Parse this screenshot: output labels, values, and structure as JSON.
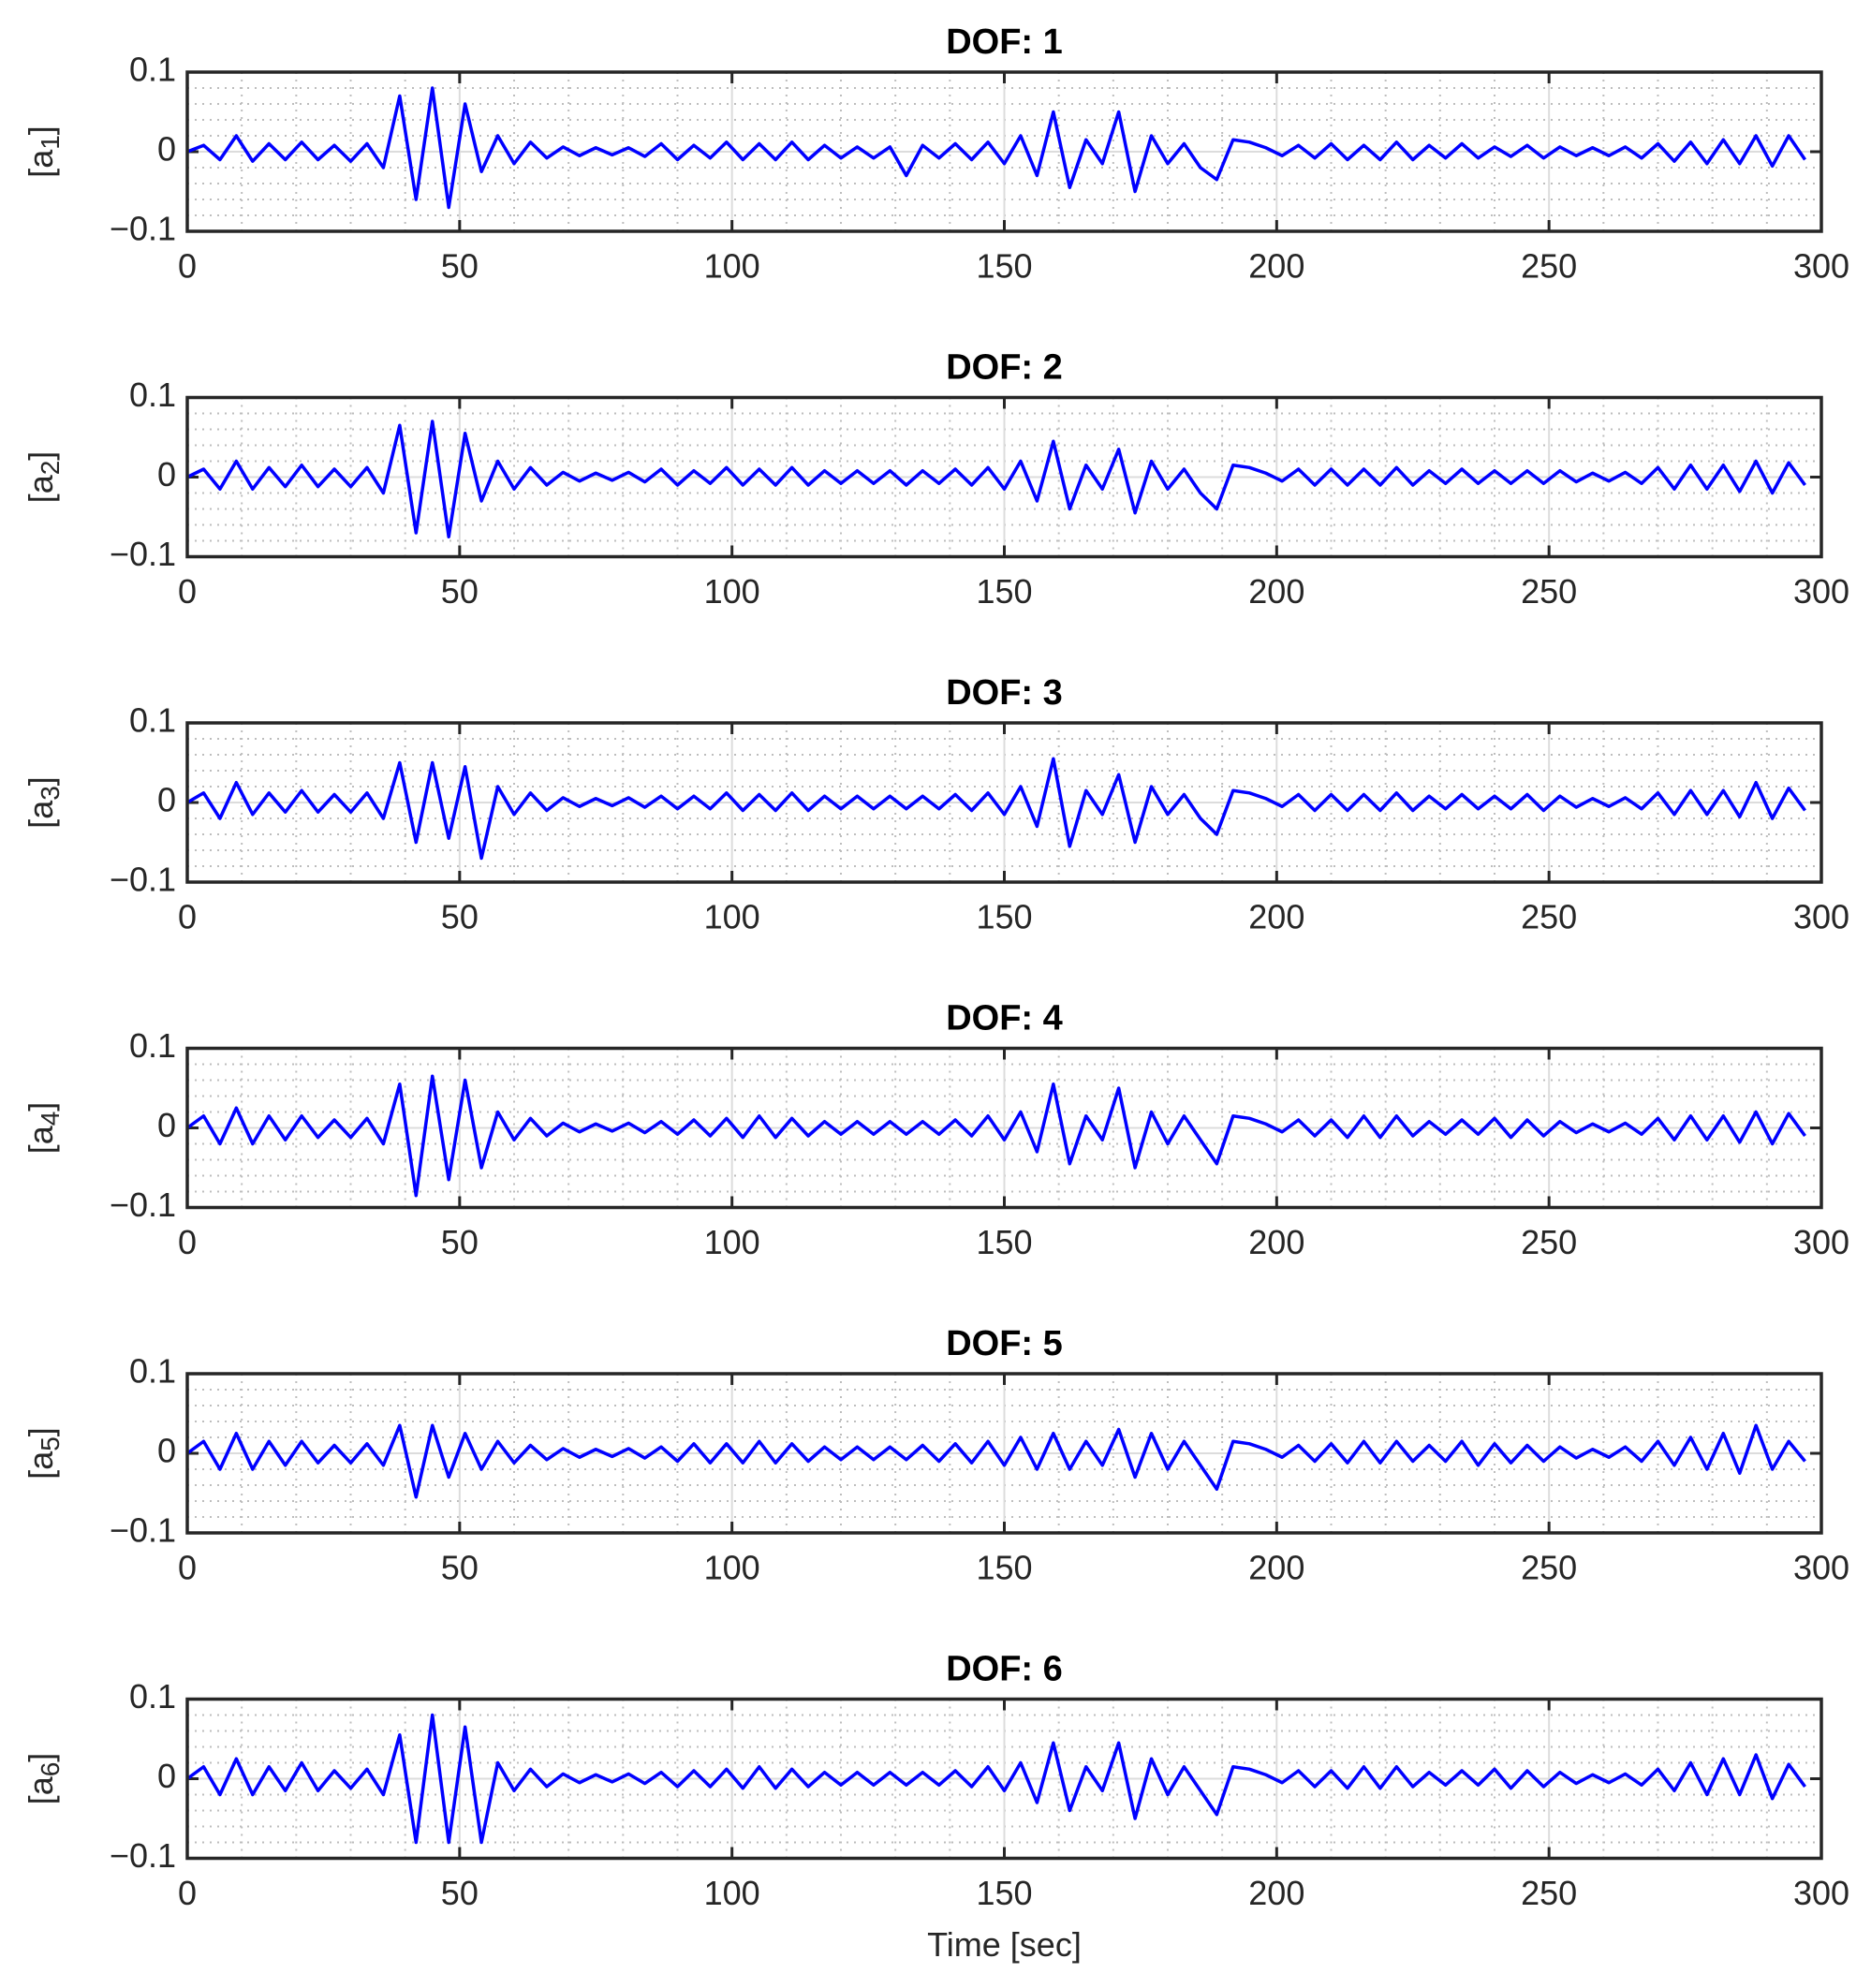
{
  "chart_data": [
    {
      "type": "line",
      "title": "DOF: 1",
      "ylabel": "[a1]",
      "color": "#0000ff",
      "x": [
        0,
        3,
        6,
        9,
        12,
        15,
        18,
        21,
        24,
        27,
        30,
        33,
        36,
        39,
        42,
        45,
        48,
        51,
        54,
        57,
        60,
        63,
        66,
        69,
        72,
        75,
        78,
        81,
        84,
        87,
        90,
        93,
        96,
        99,
        102,
        105,
        108,
        111,
        114,
        117,
        120,
        123,
        126,
        129,
        132,
        135,
        138,
        141,
        144,
        147,
        150,
        153,
        156,
        159,
        162,
        165,
        168,
        171,
        174,
        177,
        180,
        183,
        186,
        189,
        192,
        195,
        198,
        201,
        204,
        207,
        210,
        213,
        216,
        219,
        222,
        225,
        228,
        231,
        234,
        237,
        240,
        243,
        246,
        249,
        252,
        255,
        258,
        261,
        264,
        267,
        270,
        273,
        276,
        279,
        282,
        285,
        288,
        291,
        294,
        297
      ],
      "values": [
        0,
        0.008,
        -0.01,
        0.02,
        -0.012,
        0.01,
        -0.01,
        0.012,
        -0.01,
        0.008,
        -0.012,
        0.01,
        -0.02,
        0.07,
        -0.06,
        0.08,
        -0.07,
        0.06,
        -0.025,
        0.02,
        -0.015,
        0.012,
        -0.008,
        0.006,
        -0.005,
        0.005,
        -0.004,
        0.005,
        -0.006,
        0.01,
        -0.01,
        0.008,
        -0.008,
        0.012,
        -0.01,
        0.01,
        -0.01,
        0.012,
        -0.01,
        0.008,
        -0.008,
        0.006,
        -0.008,
        0.006,
        -0.03,
        0.008,
        -0.008,
        0.01,
        -0.01,
        0.012,
        -0.015,
        0.02,
        -0.03,
        0.05,
        -0.045,
        0.015,
        -0.015,
        0.05,
        -0.05,
        0.02,
        -0.015,
        0.01,
        -0.02,
        -0.035,
        0.015,
        0.012,
        0.005,
        -0.005,
        0.008,
        -0.008,
        0.01,
        -0.01,
        0.008,
        -0.01,
        0.012,
        -0.01,
        0.008,
        -0.008,
        0.01,
        -0.008,
        0.006,
        -0.006,
        0.008,
        -0.008,
        0.006,
        -0.005,
        0.005,
        -0.005,
        0.006,
        -0.008,
        0.01,
        -0.012,
        0.012,
        -0.015,
        0.015,
        -0.015,
        0.02,
        -0.018,
        0.02,
        -0.01
      ],
      "xlim": [
        0,
        300
      ],
      "ylim": [
        -0.1,
        0.1
      ],
      "xticks": [
        0,
        50,
        100,
        150,
        200,
        250,
        300
      ],
      "yticks": [
        {
          "value": -0.1,
          "label": "−0.1"
        },
        0,
        0.1
      ],
      "grid": true,
      "minor_grid": true
    },
    {
      "type": "line",
      "title": "DOF: 2",
      "ylabel": "[a2]",
      "color": "#0000ff",
      "x": [
        0,
        3,
        6,
        9,
        12,
        15,
        18,
        21,
        24,
        27,
        30,
        33,
        36,
        39,
        42,
        45,
        48,
        51,
        54,
        57,
        60,
        63,
        66,
        69,
        72,
        75,
        78,
        81,
        84,
        87,
        90,
        93,
        96,
        99,
        102,
        105,
        108,
        111,
        114,
        117,
        120,
        123,
        126,
        129,
        132,
        135,
        138,
        141,
        144,
        147,
        150,
        153,
        156,
        159,
        162,
        165,
        168,
        171,
        174,
        177,
        180,
        183,
        186,
        189,
        192,
        195,
        198,
        201,
        204,
        207,
        210,
        213,
        216,
        219,
        222,
        225,
        228,
        231,
        234,
        237,
        240,
        243,
        246,
        249,
        252,
        255,
        258,
        261,
        264,
        267,
        270,
        273,
        276,
        279,
        282,
        285,
        288,
        291,
        294,
        297
      ],
      "values": [
        0,
        0.01,
        -0.015,
        0.02,
        -0.015,
        0.012,
        -0.012,
        0.015,
        -0.012,
        0.01,
        -0.012,
        0.012,
        -0.02,
        0.065,
        -0.07,
        0.07,
        -0.075,
        0.055,
        -0.03,
        0.02,
        -0.015,
        0.012,
        -0.01,
        0.006,
        -0.005,
        0.005,
        -0.004,
        0.006,
        -0.006,
        0.01,
        -0.01,
        0.008,
        -0.008,
        0.012,
        -0.01,
        0.01,
        -0.01,
        0.012,
        -0.01,
        0.008,
        -0.008,
        0.008,
        -0.008,
        0.008,
        -0.01,
        0.008,
        -0.008,
        0.01,
        -0.01,
        0.012,
        -0.015,
        0.02,
        -0.03,
        0.045,
        -0.04,
        0.015,
        -0.015,
        0.035,
        -0.045,
        0.02,
        -0.015,
        0.01,
        -0.02,
        -0.04,
        0.015,
        0.012,
        0.005,
        -0.005,
        0.01,
        -0.01,
        0.01,
        -0.01,
        0.01,
        -0.01,
        0.012,
        -0.01,
        0.008,
        -0.008,
        0.01,
        -0.008,
        0.008,
        -0.008,
        0.008,
        -0.008,
        0.008,
        -0.006,
        0.005,
        -0.005,
        0.006,
        -0.008,
        0.012,
        -0.015,
        0.015,
        -0.015,
        0.015,
        -0.018,
        0.02,
        -0.02,
        0.018,
        -0.01
      ],
      "xlim": [
        0,
        300
      ],
      "ylim": [
        -0.1,
        0.1
      ],
      "xticks": [
        0,
        50,
        100,
        150,
        200,
        250,
        300
      ],
      "yticks": [
        {
          "value": -0.1,
          "label": "−0.1"
        },
        0,
        0.1
      ],
      "grid": true,
      "minor_grid": true
    },
    {
      "type": "line",
      "title": "DOF: 3",
      "ylabel": "[a3]",
      "color": "#0000ff",
      "x": [
        0,
        3,
        6,
        9,
        12,
        15,
        18,
        21,
        24,
        27,
        30,
        33,
        36,
        39,
        42,
        45,
        48,
        51,
        54,
        57,
        60,
        63,
        66,
        69,
        72,
        75,
        78,
        81,
        84,
        87,
        90,
        93,
        96,
        99,
        102,
        105,
        108,
        111,
        114,
        117,
        120,
        123,
        126,
        129,
        132,
        135,
        138,
        141,
        144,
        147,
        150,
        153,
        156,
        159,
        162,
        165,
        168,
        171,
        174,
        177,
        180,
        183,
        186,
        189,
        192,
        195,
        198,
        201,
        204,
        207,
        210,
        213,
        216,
        219,
        222,
        225,
        228,
        231,
        234,
        237,
        240,
        243,
        246,
        249,
        252,
        255,
        258,
        261,
        264,
        267,
        270,
        273,
        276,
        279,
        282,
        285,
        288,
        291,
        294,
        297
      ],
      "values": [
        0,
        0.012,
        -0.02,
        0.025,
        -0.015,
        0.012,
        -0.012,
        0.015,
        -0.012,
        0.01,
        -0.012,
        0.012,
        -0.02,
        0.05,
        -0.05,
        0.05,
        -0.045,
        0.045,
        -0.07,
        0.02,
        -0.015,
        0.012,
        -0.01,
        0.006,
        -0.005,
        0.005,
        -0.004,
        0.006,
        -0.006,
        0.008,
        -0.008,
        0.008,
        -0.008,
        0.012,
        -0.01,
        0.01,
        -0.01,
        0.012,
        -0.01,
        0.008,
        -0.008,
        0.008,
        -0.008,
        0.008,
        -0.008,
        0.008,
        -0.008,
        0.01,
        -0.01,
        0.012,
        -0.015,
        0.02,
        -0.03,
        0.055,
        -0.055,
        0.015,
        -0.015,
        0.035,
        -0.05,
        0.02,
        -0.015,
        0.01,
        -0.02,
        -0.04,
        0.015,
        0.012,
        0.005,
        -0.005,
        0.01,
        -0.01,
        0.01,
        -0.01,
        0.01,
        -0.01,
        0.012,
        -0.01,
        0.008,
        -0.008,
        0.01,
        -0.008,
        0.008,
        -0.008,
        0.01,
        -0.01,
        0.008,
        -0.006,
        0.005,
        -0.005,
        0.006,
        -0.008,
        0.012,
        -0.015,
        0.015,
        -0.015,
        0.015,
        -0.018,
        0.025,
        -0.02,
        0.018,
        -0.01
      ],
      "xlim": [
        0,
        300
      ],
      "ylim": [
        -0.1,
        0.1
      ],
      "xticks": [
        0,
        50,
        100,
        150,
        200,
        250,
        300
      ],
      "yticks": [
        {
          "value": -0.1,
          "label": "−0.1"
        },
        0,
        0.1
      ],
      "grid": true,
      "minor_grid": true
    },
    {
      "type": "line",
      "title": "DOF: 4",
      "ylabel": "[a4]",
      "color": "#0000ff",
      "x": [
        0,
        3,
        6,
        9,
        12,
        15,
        18,
        21,
        24,
        27,
        30,
        33,
        36,
        39,
        42,
        45,
        48,
        51,
        54,
        57,
        60,
        63,
        66,
        69,
        72,
        75,
        78,
        81,
        84,
        87,
        90,
        93,
        96,
        99,
        102,
        105,
        108,
        111,
        114,
        117,
        120,
        123,
        126,
        129,
        132,
        135,
        138,
        141,
        144,
        147,
        150,
        153,
        156,
        159,
        162,
        165,
        168,
        171,
        174,
        177,
        180,
        183,
        186,
        189,
        192,
        195,
        198,
        201,
        204,
        207,
        210,
        213,
        216,
        219,
        222,
        225,
        228,
        231,
        234,
        237,
        240,
        243,
        246,
        249,
        252,
        255,
        258,
        261,
        264,
        267,
        270,
        273,
        276,
        279,
        282,
        285,
        288,
        291,
        294,
        297
      ],
      "values": [
        0,
        0.015,
        -0.02,
        0.025,
        -0.02,
        0.015,
        -0.015,
        0.015,
        -0.012,
        0.01,
        -0.012,
        0.012,
        -0.02,
        0.055,
        -0.085,
        0.065,
        -0.065,
        0.06,
        -0.05,
        0.02,
        -0.015,
        0.012,
        -0.01,
        0.006,
        -0.005,
        0.005,
        -0.004,
        0.006,
        -0.006,
        0.008,
        -0.008,
        0.01,
        -0.01,
        0.012,
        -0.012,
        0.015,
        -0.012,
        0.012,
        -0.01,
        0.008,
        -0.008,
        0.008,
        -0.008,
        0.008,
        -0.008,
        0.008,
        -0.008,
        0.01,
        -0.01,
        0.015,
        -0.015,
        0.02,
        -0.03,
        0.055,
        -0.045,
        0.015,
        -0.015,
        0.05,
        -0.05,
        0.02,
        -0.02,
        0.015,
        -0.015,
        -0.045,
        0.015,
        0.012,
        0.005,
        -0.005,
        0.01,
        -0.01,
        0.01,
        -0.012,
        0.015,
        -0.012,
        0.015,
        -0.01,
        0.008,
        -0.008,
        0.01,
        -0.008,
        0.012,
        -0.012,
        0.01,
        -0.01,
        0.008,
        -0.006,
        0.005,
        -0.005,
        0.006,
        -0.008,
        0.012,
        -0.015,
        0.015,
        -0.015,
        0.015,
        -0.018,
        0.02,
        -0.02,
        0.018,
        -0.01
      ],
      "xlim": [
        0,
        300
      ],
      "ylim": [
        -0.1,
        0.1
      ],
      "xticks": [
        0,
        50,
        100,
        150,
        200,
        250,
        300
      ],
      "yticks": [
        {
          "value": -0.1,
          "label": "−0.1"
        },
        0,
        0.1
      ],
      "grid": true,
      "minor_grid": true
    },
    {
      "type": "line",
      "title": "DOF: 5",
      "ylabel": "[a5]",
      "color": "#0000ff",
      "x": [
        0,
        3,
        6,
        9,
        12,
        15,
        18,
        21,
        24,
        27,
        30,
        33,
        36,
        39,
        42,
        45,
        48,
        51,
        54,
        57,
        60,
        63,
        66,
        69,
        72,
        75,
        78,
        81,
        84,
        87,
        90,
        93,
        96,
        99,
        102,
        105,
        108,
        111,
        114,
        117,
        120,
        123,
        126,
        129,
        132,
        135,
        138,
        141,
        144,
        147,
        150,
        153,
        156,
        159,
        162,
        165,
        168,
        171,
        174,
        177,
        180,
        183,
        186,
        189,
        192,
        195,
        198,
        201,
        204,
        207,
        210,
        213,
        216,
        219,
        222,
        225,
        228,
        231,
        234,
        237,
        240,
        243,
        246,
        249,
        252,
        255,
        258,
        261,
        264,
        267,
        270,
        273,
        276,
        279,
        282,
        285,
        288,
        291,
        294,
        297
      ],
      "values": [
        0,
        0.015,
        -0.02,
        0.025,
        -0.02,
        0.015,
        -0.015,
        0.015,
        -0.012,
        0.01,
        -0.012,
        0.012,
        -0.015,
        0.035,
        -0.055,
        0.035,
        -0.03,
        0.025,
        -0.02,
        0.015,
        -0.012,
        0.01,
        -0.008,
        0.006,
        -0.005,
        0.005,
        -0.004,
        0.006,
        -0.006,
        0.008,
        -0.01,
        0.012,
        -0.012,
        0.012,
        -0.012,
        0.015,
        -0.012,
        0.012,
        -0.01,
        0.008,
        -0.008,
        0.008,
        -0.008,
        0.008,
        -0.008,
        0.01,
        -0.01,
        0.012,
        -0.012,
        0.015,
        -0.015,
        0.02,
        -0.02,
        0.025,
        -0.02,
        0.015,
        -0.015,
        0.03,
        -0.03,
        0.025,
        -0.02,
        0.015,
        -0.015,
        -0.045,
        0.015,
        0.012,
        0.005,
        -0.005,
        0.01,
        -0.01,
        0.012,
        -0.012,
        0.015,
        -0.012,
        0.015,
        -0.01,
        0.01,
        -0.01,
        0.015,
        -0.015,
        0.012,
        -0.012,
        0.01,
        -0.01,
        0.008,
        -0.006,
        0.005,
        -0.005,
        0.008,
        -0.01,
        0.015,
        -0.015,
        0.02,
        -0.02,
        0.025,
        -0.025,
        0.035,
        -0.02,
        0.015,
        -0.01
      ],
      "xlim": [
        0,
        300
      ],
      "ylim": [
        -0.1,
        0.1
      ],
      "xticks": [
        0,
        50,
        100,
        150,
        200,
        250,
        300
      ],
      "yticks": [
        {
          "value": -0.1,
          "label": "−0.1"
        },
        0,
        0.1
      ],
      "grid": true,
      "minor_grid": true
    },
    {
      "type": "line",
      "title": "DOF: 6",
      "ylabel": "[a6]",
      "xlabel": "Time [sec]",
      "color": "#0000ff",
      "x": [
        0,
        3,
        6,
        9,
        12,
        15,
        18,
        21,
        24,
        27,
        30,
        33,
        36,
        39,
        42,
        45,
        48,
        51,
        54,
        57,
        60,
        63,
        66,
        69,
        72,
        75,
        78,
        81,
        84,
        87,
        90,
        93,
        96,
        99,
        102,
        105,
        108,
        111,
        114,
        117,
        120,
        123,
        126,
        129,
        132,
        135,
        138,
        141,
        144,
        147,
        150,
        153,
        156,
        159,
        162,
        165,
        168,
        171,
        174,
        177,
        180,
        183,
        186,
        189,
        192,
        195,
        198,
        201,
        204,
        207,
        210,
        213,
        216,
        219,
        222,
        225,
        228,
        231,
        234,
        237,
        240,
        243,
        246,
        249,
        252,
        255,
        258,
        261,
        264,
        267,
        270,
        273,
        276,
        279,
        282,
        285,
        288,
        291,
        294,
        297
      ],
      "values": [
        0,
        0.015,
        -0.02,
        0.025,
        -0.02,
        0.015,
        -0.015,
        0.02,
        -0.015,
        0.01,
        -0.012,
        0.012,
        -0.02,
        0.055,
        -0.08,
        0.08,
        -0.08,
        0.065,
        -0.08,
        0.02,
        -0.015,
        0.012,
        -0.01,
        0.006,
        -0.005,
        0.005,
        -0.004,
        0.006,
        -0.006,
        0.008,
        -0.01,
        0.01,
        -0.01,
        0.012,
        -0.012,
        0.015,
        -0.012,
        0.012,
        -0.01,
        0.008,
        -0.008,
        0.008,
        -0.008,
        0.008,
        -0.008,
        0.008,
        -0.008,
        0.01,
        -0.01,
        0.015,
        -0.015,
        0.02,
        -0.03,
        0.045,
        -0.04,
        0.015,
        -0.015,
        0.045,
        -0.05,
        0.025,
        -0.02,
        0.015,
        -0.015,
        -0.045,
        0.015,
        0.012,
        0.005,
        -0.005,
        0.01,
        -0.01,
        0.01,
        -0.012,
        0.015,
        -0.012,
        0.015,
        -0.01,
        0.008,
        -0.008,
        0.01,
        -0.008,
        0.012,
        -0.012,
        0.01,
        -0.01,
        0.008,
        -0.006,
        0.005,
        -0.005,
        0.006,
        -0.008,
        0.012,
        -0.015,
        0.02,
        -0.02,
        0.025,
        -0.02,
        0.03,
        -0.025,
        0.018,
        -0.01
      ],
      "xlim": [
        0,
        300
      ],
      "ylim": [
        -0.1,
        0.1
      ],
      "xticks": [
        0,
        50,
        100,
        150,
        200,
        250,
        300
      ],
      "yticks": [
        {
          "value": -0.1,
          "label": "−0.1"
        },
        0,
        0.1
      ],
      "grid": true,
      "minor_grid": true
    }
  ]
}
